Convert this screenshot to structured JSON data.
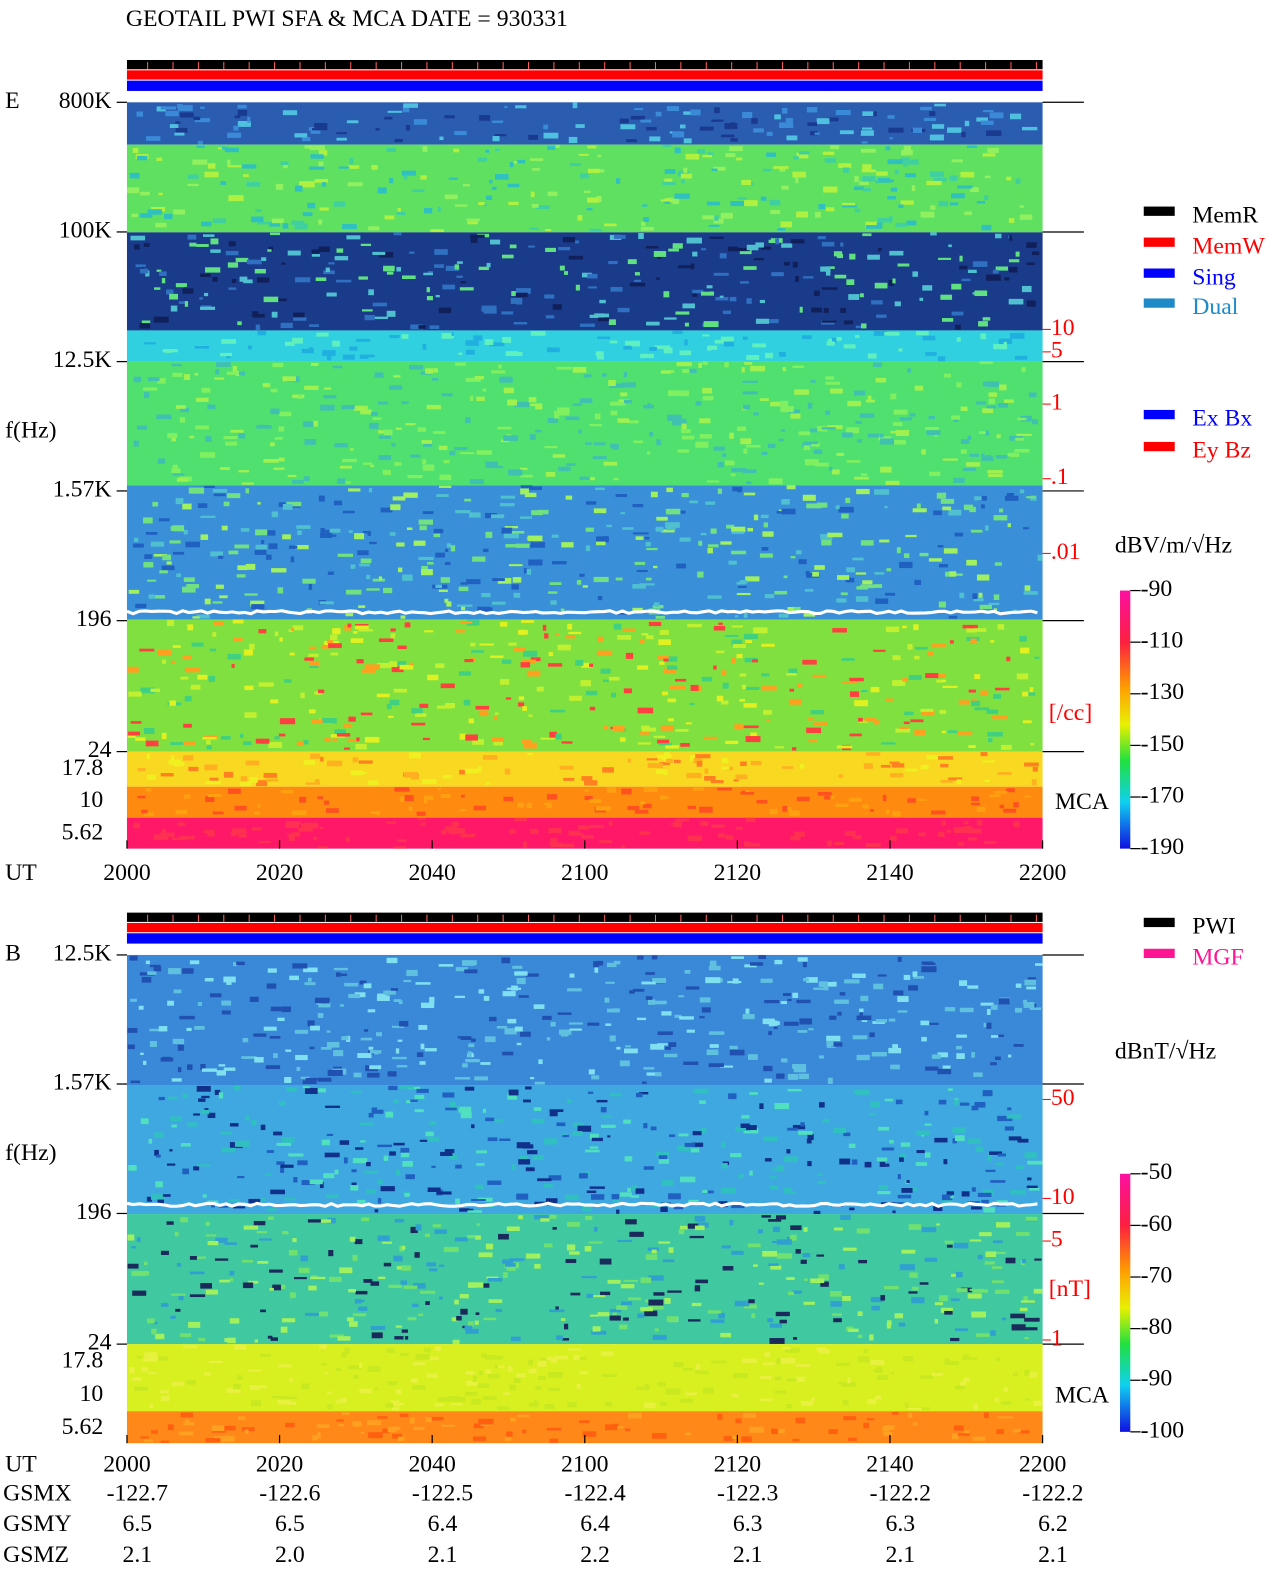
{
  "title": "GEOTAIL   PWI SFA & MCA   DATE = 930331",
  "chart_data": [
    {
      "type": "spectrogram",
      "panel": "E",
      "y_label": "f(Hz)",
      "x_label": "UT",
      "categories": [
        "2000",
        "2020",
        "2040",
        "2100",
        "2120",
        "2140",
        "2200"
      ],
      "log_y": true,
      "ylim": [
        24,
        800000
      ],
      "yticks": [
        {
          "value": 800000,
          "label": "800K"
        },
        {
          "value": 100000,
          "label": "100K"
        },
        {
          "value": 12500,
          "label": "12.5K"
        },
        {
          "value": 1570,
          "label": "1.57K"
        },
        196,
        24
      ],
      "mca_label": "MCA",
      "mca_channels": [
        17.8,
        10,
        5.62
      ],
      "y2lim": [
        0.01,
        10
      ],
      "y2ticks": [
        10,
        5,
        1,
        {
          "value": 0.1,
          "label": ".1"
        },
        {
          "value": 0.01,
          "label": ".01"
        }
      ],
      "y2_label": "[/cc]",
      "y2_color": "#ff0000",
      "colorbar": {
        "label": "dBV/m/√Hz",
        "lim": [
          -190,
          -90
        ],
        "ticks": [
          -90,
          -110,
          -130,
          -150,
          -170,
          -190
        ]
      },
      "legend": [
        {
          "name": "MemR",
          "color": "#000000"
        },
        {
          "name": "MemW",
          "color": "#ff0000"
        },
        {
          "name": "Sing",
          "color": "#0000ff"
        },
        {
          "name": "Dual",
          "color": "#1e8ac8"
        },
        {
          "name": "Ex Bx",
          "color": "#0000ff"
        },
        {
          "name": "Ey Bz",
          "color": "#ff0000"
        }
      ]
    },
    {
      "type": "spectrogram",
      "panel": "B",
      "y_label": "f(Hz)",
      "x_label": "UT",
      "categories": [
        "2000",
        "2020",
        "2040",
        "2100",
        "2120",
        "2140",
        "2200"
      ],
      "log_y": true,
      "ylim": [
        24,
        12500
      ],
      "yticks": [
        {
          "value": 12500,
          "label": "12.5K"
        },
        {
          "value": 1570,
          "label": "1.57K"
        },
        196,
        24
      ],
      "mca_label": "MCA",
      "mca_channels": [
        17.8,
        10,
        5.62
      ],
      "y2lim": [
        1,
        50
      ],
      "y2ticks": [
        50,
        10,
        5,
        1
      ],
      "y2_label": "[nT]",
      "y2_color": "#ff0000",
      "colorbar": {
        "label": "dBnT/√Hz",
        "lim": [
          -100,
          -50
        ],
        "ticks": [
          -50,
          -60,
          -70,
          -80,
          -90,
          -100
        ]
      },
      "legend": [
        {
          "name": "PWI",
          "color": "#000000"
        },
        {
          "name": "MGF",
          "color": "#ff1493"
        }
      ]
    }
  ],
  "orbit": {
    "rows": [
      {
        "label": "GSMX",
        "values": [
          -122.7,
          -122.6,
          -122.5,
          -122.4,
          -122.3,
          -122.2,
          -122.2
        ]
      },
      {
        "label": "GSMY",
        "values": [
          6.5,
          6.5,
          6.4,
          6.4,
          6.3,
          6.3,
          6.2
        ]
      },
      {
        "label": "GSMZ",
        "values": [
          2.1,
          {
            "value": 2,
            "label": "2.0"
          },
          2.1,
          2.2,
          2.1,
          2.1,
          2.1
        ]
      }
    ]
  }
}
